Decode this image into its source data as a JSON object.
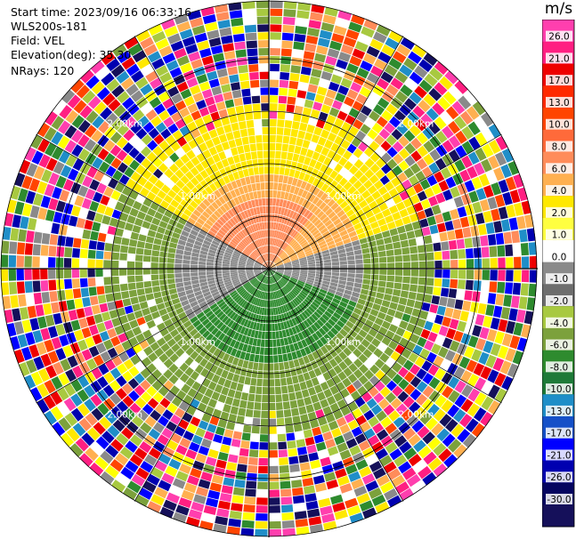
{
  "header": {
    "start_time": "Start time: 2023/09/16 06:33:16",
    "instrument": "WLS200s-181",
    "field": "Field: VEL",
    "elevation": "Elevation(deg): 35.30",
    "nrays": "NRays: 120"
  },
  "chart_data": {
    "type": "heatmap",
    "projection": "polar-ppi",
    "field": "VEL",
    "units": "m/s",
    "nrays": 120,
    "elevation_deg": 35.3,
    "range_max_km": 3.6,
    "range_ring_labels": [
      {
        "label": "1.00km",
        "range_km": 1.0
      },
      {
        "label": "2.00km",
        "range_km": 2.0
      },
      {
        "label": "3.00km",
        "range_km": 3.0
      }
    ],
    "grid": true,
    "colorbar": {
      "label": "m/s",
      "placement": "right",
      "ticks": [
        "26.0",
        "21.0",
        "17.0",
        "13.0",
        "10.0",
        "8.0",
        "6.0",
        "4.0",
        "2.0",
        "1.0",
        "0.0",
        "-1.0",
        "-2.0",
        "-4.0",
        "-6.0",
        "-8.0",
        "-10.0",
        "-13.0",
        "-17.0",
        "-21.0",
        "-26.0",
        "-30.0"
      ],
      "colors": [
        "#ff3fae",
        "#ff1f82",
        "#ee0000",
        "#ff2a00",
        "#ff4500",
        "#ff6a3a",
        "#ff8c5a",
        "#ffb050",
        "#ffe800",
        "#ffff40",
        "#ffffff",
        "#8a8a8a",
        "#6d6d6d",
        "#a8c940",
        "#7ca13c",
        "#2e8b2e",
        "#1e7a38",
        "#1f8ec8",
        "#1550c8",
        "#0000ff",
        "#0000b0",
        "#050560",
        "#15105a"
      ]
    },
    "near_field_pattern": {
      "positive_sector_deg": [
        300,
        70
      ],
      "positive_color": "#ff8c5a",
      "zero_band_deg": [
        80,
        105
      ],
      "negative_sector_deg": [
        110,
        240
      ]
    }
  }
}
